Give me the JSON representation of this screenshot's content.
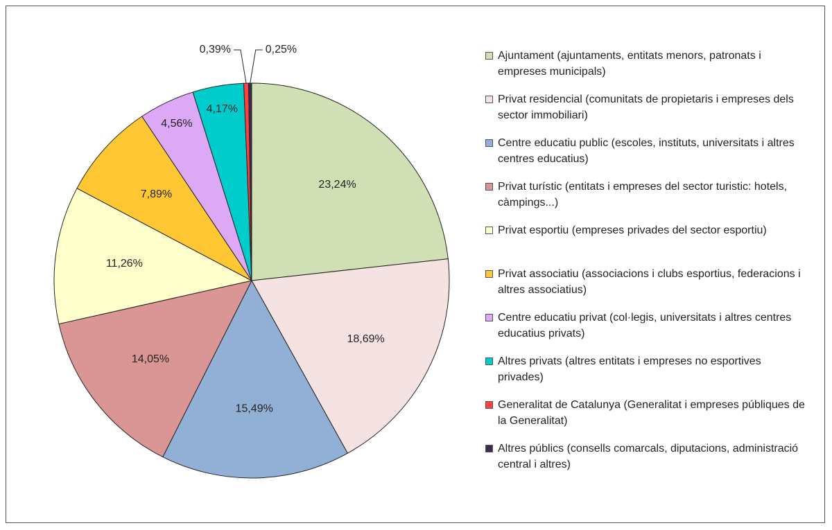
{
  "chart_data": {
    "type": "pie",
    "categories": [
      "Ajuntament (ajuntaments, entitats menors, patronats i empreses municipals)",
      "Privat residencial (comunitats de propietaris i empreses dels sector immobiliari)",
      "Centre educatiu public (escoles, instituts, universitats i altres centres educatius)",
      "Privat turístic (entitats i empreses del sector turistic: hotels, càmpings...)",
      "Privat esportiu (empreses privades del sector esportiu)",
      "Privat associatiu (associacions i clubs esportius, federacions i altres associatius)",
      "Centre educatiu privat (col·legis, universitats i altres centres educatius privats)",
      "Altres privats (altres entitats i empreses no esportives privades)",
      "Generalitat de Catalunya (Generalitat i empreses públiques de la Generalitat)",
      "Altres públics (consells comarcals, diputacions, administració central i altres)"
    ],
    "values": [
      23.24,
      18.69,
      15.49,
      14.05,
      11.26,
      7.89,
      4.56,
      4.17,
      0.39,
      0.25
    ],
    "value_labels": [
      "23,24%",
      "18,69%",
      "15,49%",
      "14,05%",
      "11,26%",
      "7,89%",
      "4,56%",
      "4,17%",
      "0,39%",
      "0,25%"
    ],
    "colors": [
      "#d0dfb4",
      "#f5e2e2",
      "#92b0d6",
      "#d99694",
      "#ffffcc",
      "#ffc733",
      "#dda8f5",
      "#00cccc",
      "#ff4040",
      "#3d2a4d"
    ],
    "legend": "right"
  }
}
